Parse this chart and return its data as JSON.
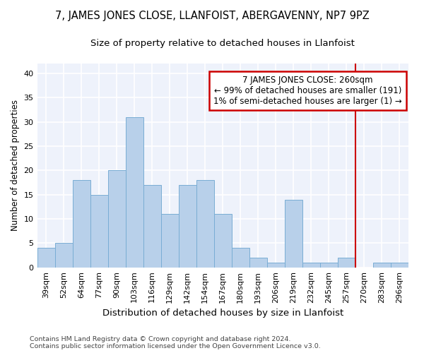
{
  "title1": "7, JAMES JONES CLOSE, LLANFOIST, ABERGAVENNY, NP7 9PZ",
  "title2": "Size of property relative to detached houses in Llanfoist",
  "xlabel": "Distribution of detached houses by size in Llanfoist",
  "ylabel": "Number of detached properties",
  "categories": [
    "39sqm",
    "52sqm",
    "64sqm",
    "77sqm",
    "90sqm",
    "103sqm",
    "116sqm",
    "129sqm",
    "142sqm",
    "154sqm",
    "167sqm",
    "180sqm",
    "193sqm",
    "206sqm",
    "219sqm",
    "232sqm",
    "245sqm",
    "257sqm",
    "270sqm",
    "283sqm",
    "296sqm"
  ],
  "values": [
    4,
    5,
    18,
    15,
    20,
    31,
    17,
    11,
    17,
    18,
    11,
    4,
    2,
    1,
    14,
    1,
    1,
    2,
    0,
    1,
    1
  ],
  "bar_color": "#b8d0ea",
  "bar_edge_color": "#7aadd4",
  "background_color": "#eef2fb",
  "grid_color": "#ffffff",
  "vline_x_index": 17,
  "vline_color": "#cc0000",
  "annotation_text": "7 JAMES JONES CLOSE: 260sqm\n← 99% of detached houses are smaller (191)\n1% of semi-detached houses are larger (1) →",
  "annotation_box_color": "#cc0000",
  "ylim": [
    0,
    42
  ],
  "yticks": [
    0,
    5,
    10,
    15,
    20,
    25,
    30,
    35,
    40
  ],
  "footer": "Contains HM Land Registry data © Crown copyright and database right 2024.\nContains public sector information licensed under the Open Government Licence v3.0.",
  "title1_fontsize": 10.5,
  "title2_fontsize": 9.5,
  "xlabel_fontsize": 9.5,
  "ylabel_fontsize": 8.5,
  "tick_fontsize": 8,
  "annotation_fontsize": 8.5,
  "footer_fontsize": 6.8
}
